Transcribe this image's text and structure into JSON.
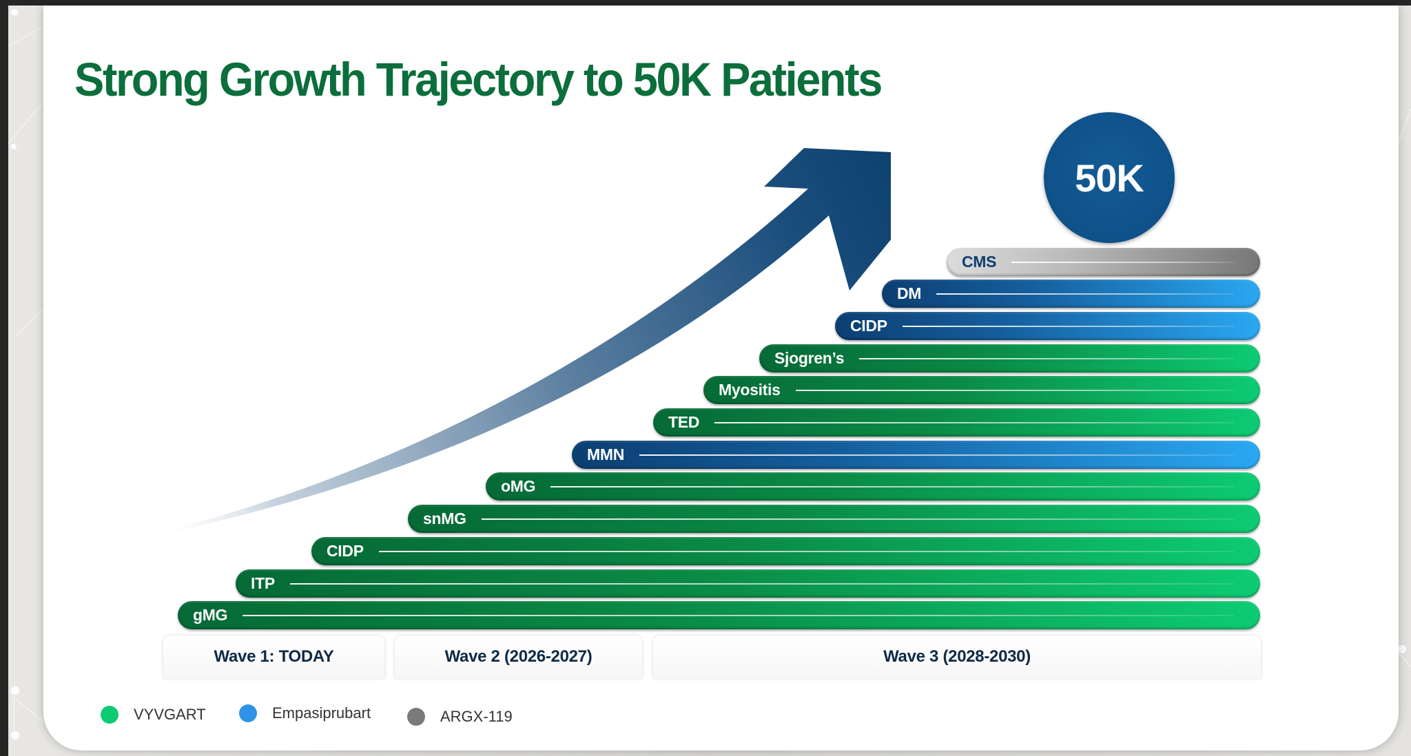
{
  "title": "Strong Growth Trajectory to 50K Patients",
  "badge": "50K",
  "colors": {
    "title": "#0b6e3b",
    "vyvgart": "#0dcb73",
    "empasiprubart": "#2e93e6",
    "argx119": "#7a7a7a",
    "badge": "#0f5189"
  },
  "bars": [
    {
      "label": "CMS",
      "product": "argx119"
    },
    {
      "label": "DM",
      "product": "empasiprubart"
    },
    {
      "label": "CIDP",
      "product": "empasiprubart"
    },
    {
      "label": "Sjogren’s",
      "product": "vyvgart"
    },
    {
      "label": "Myositis",
      "product": "vyvgart"
    },
    {
      "label": "TED",
      "product": "vyvgart"
    },
    {
      "label": "MMN",
      "product": "empasiprubart"
    },
    {
      "label": "oMG",
      "product": "vyvgart"
    },
    {
      "label": "snMG",
      "product": "vyvgart"
    },
    {
      "label": "CIDP",
      "product": "vyvgart"
    },
    {
      "label": "ITP",
      "product": "vyvgart"
    },
    {
      "label": "gMG",
      "product": "vyvgart"
    }
  ],
  "waves": [
    {
      "label": "Wave 1: TODAY"
    },
    {
      "label": "Wave 2 (2026-2027)"
    },
    {
      "label": "Wave 3 (2028-2030)"
    }
  ],
  "legend": [
    {
      "label": "VYVGART",
      "color": "#0dcb73"
    },
    {
      "label": "Empasiprubart",
      "color": "#2e93e6"
    },
    {
      "label": "ARGX-119",
      "color": "#7a7a7a"
    }
  ]
}
